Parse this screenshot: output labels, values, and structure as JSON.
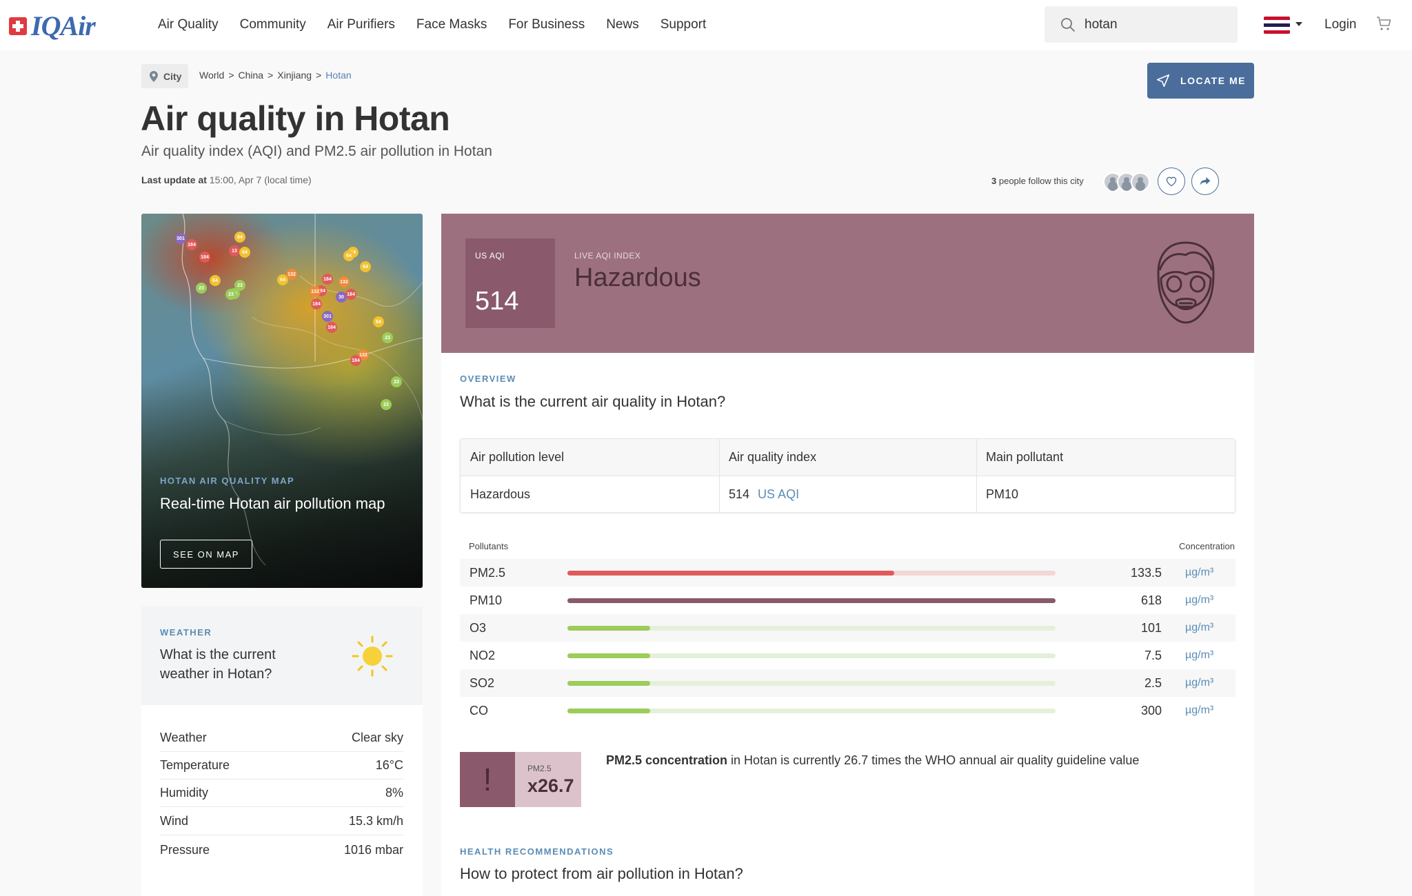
{
  "header": {
    "logo_text": "IQAir",
    "nav": [
      "Air Quality",
      "Community",
      "Air Purifiers",
      "Face Masks",
      "For Business",
      "News",
      "Support"
    ],
    "search_value": "hotan",
    "login_label": "Login"
  },
  "breadcrumb": {
    "chip_label": "City",
    "items": [
      "World",
      "China",
      "Xinjiang",
      "Hotan"
    ],
    "separator": ">"
  },
  "locate_label": "LOCATE ME",
  "page": {
    "title": "Air quality in Hotan",
    "subtitle": "Air quality index (AQI) and PM2.5 air pollution in Hotan",
    "last_update_label": "Last update at",
    "last_update_value": "15:00, Apr 7 (local time)",
    "follow_count": "3",
    "follow_text": "people follow this city"
  },
  "map_card": {
    "eyebrow": "HOTAN AIR QUALITY MAP",
    "title": "Real-time Hotan air pollution map",
    "button": "SEE ON MAP"
  },
  "weather": {
    "eyebrow": "WEATHER",
    "question": "What is the current weather in Hotan?",
    "rows": [
      {
        "label": "Weather",
        "value": "Clear sky"
      },
      {
        "label": "Temperature",
        "value": "16°C"
      },
      {
        "label": "Humidity",
        "value": "8%"
      },
      {
        "label": "Wind",
        "value": "15.3 km/h"
      },
      {
        "label": "Pressure",
        "value": "1016 mbar"
      }
    ]
  },
  "aqi": {
    "label": "US AQI",
    "value": "514",
    "live_label": "LIVE AQI INDEX",
    "level": "Hazardous",
    "hero_color": "#9d7080"
  },
  "overview": {
    "eyebrow": "OVERVIEW",
    "question": "What is the current air quality in Hotan?",
    "headers": [
      "Air pollution level",
      "Air quality index",
      "Main pollutant"
    ],
    "level": "Hazardous",
    "index_value": "514",
    "index_unit": "US AQI",
    "main_pollutant": "PM10"
  },
  "pollutants": {
    "col_left": "Pollutants",
    "col_right": "Concentration",
    "rows": [
      {
        "name": "PM2.5",
        "value": "133.5",
        "unit": "µg/m³",
        "level": 0.67,
        "fill": "#e05a5a",
        "track": "#f3d6d6"
      },
      {
        "name": "PM10",
        "value": "618",
        "unit": "µg/m³",
        "level": 1.0,
        "fill": "#8a5a6c",
        "track": "#e6d8dd"
      },
      {
        "name": "O3",
        "value": "101",
        "unit": "µg/m³",
        "level": 0.17,
        "fill": "#9ccc5a",
        "track": "#e5f0da"
      },
      {
        "name": "NO2",
        "value": "7.5",
        "unit": "µg/m³",
        "level": 0.17,
        "fill": "#9ccc5a",
        "track": "#e5f0da"
      },
      {
        "name": "SO2",
        "value": "2.5",
        "unit": "µg/m³",
        "level": 0.17,
        "fill": "#9ccc5a",
        "track": "#e5f0da"
      },
      {
        "name": "CO",
        "value": "300",
        "unit": "µg/m³",
        "level": 0.17,
        "fill": "#9ccc5a",
        "track": "#e5f0da"
      }
    ]
  },
  "who": {
    "pollutant": "PM2.5",
    "multiplier": "x26.7",
    "bold": "PM2.5 concentration",
    "text": " in Hotan is currently 26.7 times the WHO annual air quality guideline value"
  },
  "health": {
    "eyebrow": "HEALTH RECOMMENDATIONS",
    "question": "How to protect from air pollution in Hotan?"
  },
  "map_dots": [
    {
      "label": "301",
      "color": "#8a68c0"
    },
    {
      "label": "184",
      "color": "#e05a5a"
    },
    {
      "label": "184",
      "color": "#e05a5a"
    },
    {
      "label": "64",
      "color": "#f2c230"
    },
    {
      "label": "13",
      "color": "#e05a5a"
    },
    {
      "label": "64",
      "color": "#f2c230"
    },
    {
      "label": "23",
      "color": "#9ccc5a"
    },
    {
      "label": "64",
      "color": "#f2c230"
    },
    {
      "label": "23",
      "color": "#9ccc5a"
    },
    {
      "label": "23",
      "color": "#9ccc5a"
    },
    {
      "label": "23",
      "color": "#9ccc5a"
    },
    {
      "label": "64",
      "color": "#f2c230"
    },
    {
      "label": "132",
      "color": "#f08a3a"
    },
    {
      "label": "184",
      "color": "#e05a5a"
    },
    {
      "label": "132",
      "color": "#f08a3a"
    },
    {
      "label": "184",
      "color": "#e05a5a"
    },
    {
      "label": "132",
      "color": "#f08a3a"
    },
    {
      "label": "184",
      "color": "#e05a5a"
    },
    {
      "label": "184",
      "color": "#e05a5a"
    },
    {
      "label": "30",
      "color": "#8a68c0"
    },
    {
      "label": "301",
      "color": "#8a68c0"
    },
    {
      "label": "184",
      "color": "#e05a5a"
    },
    {
      "label": "64",
      "color": "#f2c230"
    },
    {
      "label": "64",
      "color": "#f2c230"
    },
    {
      "label": "64",
      "color": "#f2c230"
    },
    {
      "label": "132",
      "color": "#f08a3a"
    },
    {
      "label": "184",
      "color": "#e05a5a"
    },
    {
      "label": "64",
      "color": "#f2c230"
    },
    {
      "label": "23",
      "color": "#9ccc5a"
    },
    {
      "label": "23",
      "color": "#9ccc5a"
    },
    {
      "label": "23",
      "color": "#9ccc5a"
    }
  ]
}
